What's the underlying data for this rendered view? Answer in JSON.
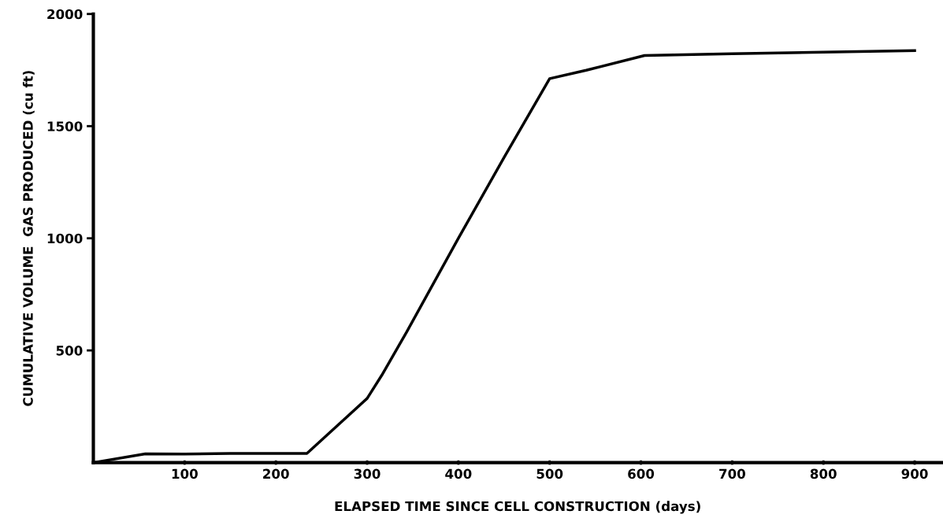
{
  "chart_data": {
    "type": "line",
    "xlabel": "ELAPSED TIME SINCE CELL CONSTRUCTION (days)",
    "ylabel": "CUMULATIVE VOLUME  GAS PRODUCED (cu ft)",
    "series": [
      {
        "color": "#000000",
        "x": [
          0,
          57,
          100,
          150,
          234,
          300,
          316,
          343,
          400,
          450,
          500,
          540,
          604,
          700,
          800,
          900
        ],
        "values": [
          0,
          39,
          38,
          41,
          41,
          286,
          389,
          580,
          1000,
          1360,
          1712,
          1749,
          1815,
          1823,
          1830,
          1837
        ]
      }
    ],
    "xlim": [
      0,
      930
    ],
    "ylim": [
      0,
      2000
    ],
    "xticks": [
      100,
      200,
      300,
      400,
      500,
      600,
      700,
      800,
      900
    ],
    "yticks": [
      500,
      1000,
      1500,
      2000
    ],
    "grid": false,
    "marker": "none",
    "line_style": "solid"
  }
}
